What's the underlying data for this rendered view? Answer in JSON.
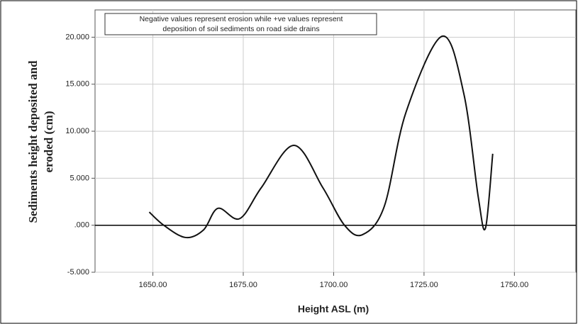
{
  "chart_data": {
    "type": "line",
    "ylabel": [
      "Sediments height deposited and",
      "eroded (cm)"
    ],
    "xlabel": "Height ASL (m)",
    "annotation": [
      "Negative values represent erosion while +ve values represent",
      "deposition of soil sediments on road side drains"
    ],
    "x": [
      1649,
      1653,
      1659,
      1664,
      1668,
      1674,
      1680,
      1689,
      1697,
      1703,
      1708,
      1714,
      1720,
      1730,
      1736,
      1740,
      1742,
      1744
    ],
    "series": [
      {
        "name": "Sediments",
        "color": "#111111",
        "values": [
          1.4,
          0,
          -1.3,
          -0.5,
          1.8,
          0.7,
          4.0,
          8.5,
          4.0,
          0,
          -1.0,
          2.0,
          12.0,
          20.1,
          14.0,
          3.0,
          -0.3,
          7.6
        ]
      }
    ],
    "xlim": [
      1634,
      1767
    ],
    "xticks": [
      {
        "value": 1650,
        "label": "1650.00"
      },
      {
        "value": 1675,
        "label": "1675.00"
      },
      {
        "value": 1700,
        "label": "1700.00"
      },
      {
        "value": 1725,
        "label": "1725.00"
      },
      {
        "value": 1750,
        "label": "1750.00"
      }
    ],
    "ylim": [
      -5,
      22.9
    ],
    "yticks": [
      {
        "value": -5,
        "label": "-5.000"
      },
      {
        "value": 0,
        "label": ".000"
      },
      {
        "value": 5,
        "label": "5.000"
      },
      {
        "value": 10,
        "label": "10.000"
      },
      {
        "value": 15,
        "label": "15.000"
      },
      {
        "value": 20,
        "label": "20.000"
      }
    ],
    "reference_line": 0,
    "grid": true
  }
}
